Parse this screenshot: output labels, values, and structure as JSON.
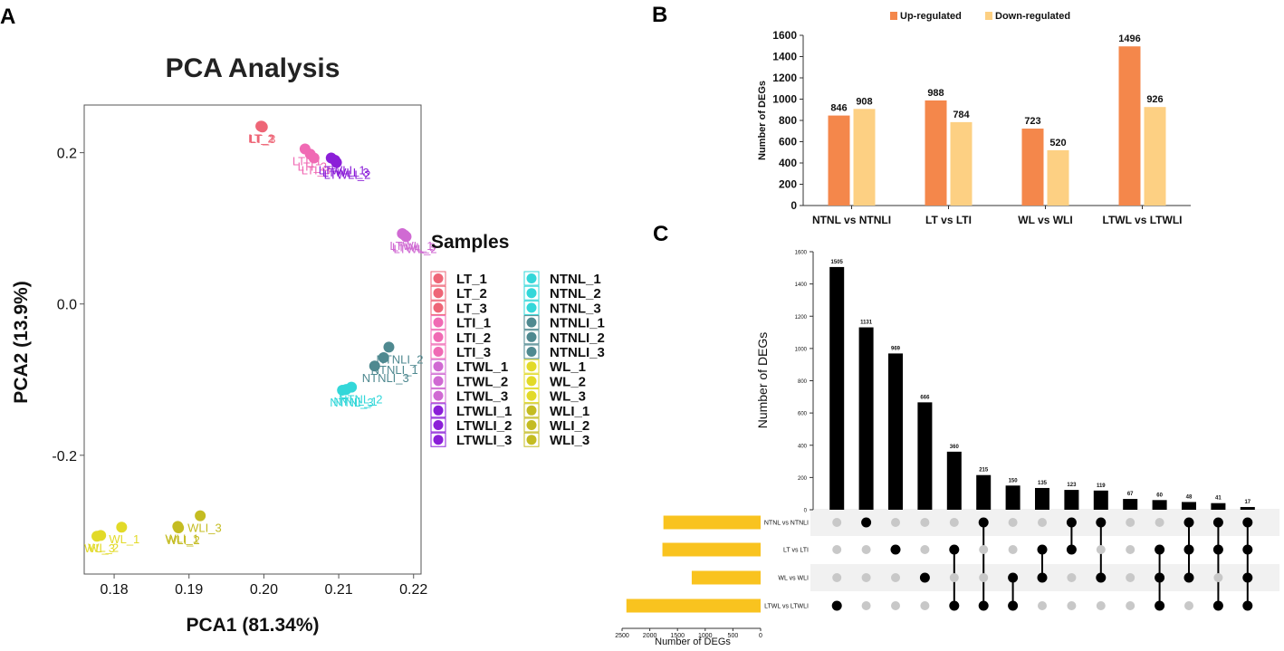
{
  "panel_labels": [
    "A",
    "B",
    "C"
  ],
  "colors": {
    "up": "#F4874B",
    "down": "#FDD083",
    "setbar": "#F9C31F",
    "bar_black": "#000000",
    "dot_on": "#000000",
    "dot_off": "#C8C8C8",
    "stripe": "#F1F1F1",
    "frame": "#555555"
  },
  "chart_data": [
    {
      "id": "pca",
      "type": "scatter",
      "title": "PCA Analysis",
      "xlabel": "PCA1 (81.34%)",
      "ylabel": "PCA2 (13.9%)",
      "xlim": [
        0.176,
        0.221
      ],
      "ylim": [
        -0.357,
        0.263
      ],
      "xticks": [
        0.18,
        0.19,
        0.2,
        0.21,
        0.22
      ],
      "xtick_labels": [
        "0.18",
        "0.19",
        "0.20",
        "0.21",
        "0.22"
      ],
      "yticks": [
        0.2,
        0.0,
        -0.2
      ],
      "ytick_labels": [
        "0.2",
        "0.0",
        "-0.2"
      ],
      "legend_title": "Samples",
      "points": [
        {
          "label": "LT_1",
          "x": 0.1997,
          "y": 0.235,
          "color": "#EE6677",
          "text": "LT_1"
        },
        {
          "label": "LT_2",
          "x": 0.1996,
          "y": 0.235,
          "color": "#EE6677",
          "text": "LT_2"
        },
        {
          "label": "LT_3",
          "x": 0.1998,
          "y": 0.234,
          "color": "#EE6677",
          "text": "LT_3"
        },
        {
          "label": "LTI_1",
          "x": 0.2055,
          "y": 0.205,
          "color": "#F06AB4",
          "text": "LTI_1"
        },
        {
          "label": "LTI_2",
          "x": 0.2062,
          "y": 0.198,
          "color": "#F06AB4",
          "text": "LTI_2"
        },
        {
          "label": "LTI_3",
          "x": 0.2067,
          "y": 0.193,
          "color": "#F06AB4",
          "text": "LTI_3"
        },
        {
          "label": "LTWL_1",
          "x": 0.2185,
          "y": 0.093,
          "color": "#D06AD3",
          "text": "LTWL_1"
        },
        {
          "label": "LTWL_2",
          "x": 0.219,
          "y": 0.089,
          "color": "#D06AD3",
          "text": "LTWL_2"
        },
        {
          "label": "LTWL_3",
          "x": 0.2188,
          "y": 0.091,
          "color": "#D06AD3",
          "text": "LTWL_3"
        },
        {
          "label": "LTWLI_1",
          "x": 0.209,
          "y": 0.193,
          "color": "#8B1FD8",
          "text": "LTWLI_1"
        },
        {
          "label": "LTWLI_2",
          "x": 0.2097,
          "y": 0.187,
          "color": "#8B1FD8",
          "text": "LTWLI_2"
        },
        {
          "label": "LTWLI_3",
          "x": 0.2095,
          "y": 0.19,
          "color": "#8B1FD8",
          "text": "LTWLI_3"
        },
        {
          "label": "NTNL_1",
          "x": 0.211,
          "y": -0.113,
          "color": "#33D7D9",
          "text": "NTNL_1"
        },
        {
          "label": "NTNL_2",
          "x": 0.2117,
          "y": -0.11,
          "color": "#33D7D9",
          "text": "NTNL_2"
        },
        {
          "label": "NTNL_3",
          "x": 0.2105,
          "y": -0.114,
          "color": "#33D7D9",
          "text": "NTNL_3"
        },
        {
          "label": "NTNLI_1",
          "x": 0.216,
          "y": -0.071,
          "color": "#4F8990",
          "text": "NTNLI_1"
        },
        {
          "label": "NTNLI_2",
          "x": 0.2167,
          "y": -0.057,
          "color": "#4F8990",
          "text": "NTNLI_2"
        },
        {
          "label": "NTNLI_3",
          "x": 0.2148,
          "y": -0.082,
          "color": "#4F8990",
          "text": "NTNLI_3"
        },
        {
          "label": "WL_1",
          "x": 0.181,
          "y": -0.295,
          "color": "#E2DA28",
          "text": "WL_1"
        },
        {
          "label": "WL_2",
          "x": 0.1782,
          "y": -0.306,
          "color": "#E2DA28",
          "text": "WL_2"
        },
        {
          "label": "WL_3",
          "x": 0.1777,
          "y": -0.307,
          "color": "#E2DA28",
          "text": "WL_3"
        },
        {
          "label": "WLI_1",
          "x": 0.1885,
          "y": -0.294,
          "color": "#C4BC22",
          "text": "WLI_1"
        },
        {
          "label": "WLI_2",
          "x": 0.1886,
          "y": -0.296,
          "color": "#C4BC22",
          "text": "WLI_2"
        },
        {
          "label": "WLI_3",
          "x": 0.1915,
          "y": -0.28,
          "color": "#C4BC22",
          "text": "WLI_3"
        }
      ]
    },
    {
      "id": "degs",
      "type": "bar",
      "title": "",
      "xlabel": "",
      "ylabel": "Number of DEGs",
      "ylim": [
        0,
        1600
      ],
      "yticks": [
        0,
        200,
        400,
        600,
        800,
        1000,
        1200,
        1400,
        1600
      ],
      "ytick_labels": [
        "0",
        "200",
        "400",
        "600",
        "800",
        "1000",
        "1200",
        "1400",
        "1600"
      ],
      "categories": [
        "NTNL vs NTNLI",
        "LT vs LTI",
        "WL vs WLI",
        "LTWL vs LTWLI"
      ],
      "series": [
        {
          "name": "Up-regulated",
          "values": [
            846,
            988,
            723,
            1496
          ],
          "value_labels": [
            "846",
            "988",
            "723",
            "1496"
          ],
          "color": "#F4874B"
        },
        {
          "name": "Down-regulated",
          "values": [
            908,
            784,
            520,
            926
          ],
          "value_labels": [
            "908",
            "784",
            "520",
            "926"
          ],
          "color": "#FDD083"
        }
      ],
      "legend": "top"
    },
    {
      "id": "upset",
      "type": "bar",
      "title": "",
      "ylabel": "Number of DEGs",
      "ylim": [
        0,
        1600
      ],
      "yticks": [
        0,
        200,
        400,
        600,
        800,
        1000,
        1200,
        1400,
        1600
      ],
      "ytick_labels": [
        "0",
        "200",
        "400",
        "600",
        "800",
        "1000",
        "1200",
        "1400",
        "1600"
      ],
      "intersection_values": [
        1505,
        1131,
        969,
        666,
        360,
        215,
        150,
        135,
        123,
        119,
        67,
        60,
        48,
        41,
        17
      ],
      "intersection_labels": [
        "1505",
        "1131",
        "969",
        "666",
        "360",
        "215",
        "150",
        "135",
        "123",
        "119",
        "67",
        "60",
        "48",
        "41",
        "17"
      ],
      "sets": [
        "NTNL vs NTNLI",
        "LT vs LTI",
        "WL vs WLI",
        "LTWL vs LTWLI"
      ],
      "set_sizes": [
        1754,
        1772,
        1243,
        2422
      ],
      "set_xlabel": "Number of DEGs",
      "set_xticks": [
        2500,
        2000,
        1500,
        1000,
        500,
        0
      ],
      "set_xtick_labels": [
        "2500",
        "2000",
        "1500",
        "1000",
        "500",
        "0"
      ],
      "matrix": [
        [
          4
        ],
        [
          1
        ],
        [
          2
        ],
        [
          3
        ],
        [
          2,
          4
        ],
        [
          1,
          4
        ],
        [
          3,
          4
        ],
        [
          2,
          3
        ],
        [
          1,
          2
        ],
        [
          1,
          3
        ],
        [],
        [
          2,
          3,
          4
        ],
        [
          1,
          2,
          3
        ],
        [
          1,
          2,
          4
        ],
        [
          1,
          2,
          3,
          4
        ]
      ]
    }
  ]
}
